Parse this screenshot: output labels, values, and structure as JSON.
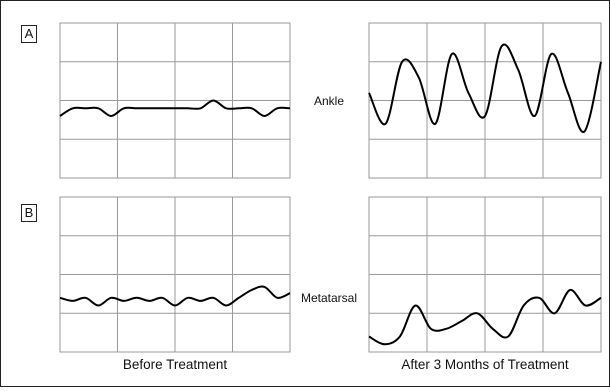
{
  "figure": {
    "panels": [
      {
        "label": "A",
        "site": "Ankle"
      },
      {
        "label": "B",
        "site": "Metatarsal"
      }
    ],
    "columns": [
      "Before Treatment",
      "After 3 Months of Treatment"
    ]
  },
  "chart_data": [
    {
      "type": "line",
      "title": "",
      "xlabel": "Before Treatment",
      "ylabel": "",
      "grid": true,
      "series": [
        {
          "values": [
            0.4,
            0.45,
            0.45,
            0.45,
            0.4,
            0.45,
            0.45,
            0.45,
            0.45,
            0.45,
            0.45,
            0.45,
            0.5,
            0.45,
            0.45,
            0.45,
            0.4,
            0.45,
            0.45
          ]
        }
      ]
    },
    {
      "type": "line",
      "title": "",
      "xlabel": "After 3 Months of Treatment",
      "ylabel": "",
      "grid": true,
      "series": [
        {
          "values": [
            0.55,
            0.35,
            0.75,
            0.65,
            0.35,
            0.8,
            0.55,
            0.4,
            0.85,
            0.7,
            0.4,
            0.8,
            0.55,
            0.3,
            0.75
          ]
        }
      ]
    },
    {
      "type": "line",
      "title": "",
      "xlabel": "Before Treatment",
      "ylabel": "",
      "grid": true,
      "series": [
        {
          "values": [
            0.35,
            0.33,
            0.35,
            0.3,
            0.35,
            0.33,
            0.35,
            0.33,
            0.35,
            0.3,
            0.35,
            0.33,
            0.35,
            0.3,
            0.35,
            0.4,
            0.42,
            0.35,
            0.38
          ]
        }
      ]
    },
    {
      "type": "line",
      "title": "",
      "xlabel": "After 3 Months of Treatment",
      "ylabel": "",
      "grid": true,
      "series": [
        {
          "values": [
            0.1,
            0.05,
            0.1,
            0.3,
            0.15,
            0.15,
            0.2,
            0.25,
            0.15,
            0.1,
            0.3,
            0.35,
            0.25,
            0.4,
            0.3,
            0.35
          ]
        }
      ]
    }
  ]
}
